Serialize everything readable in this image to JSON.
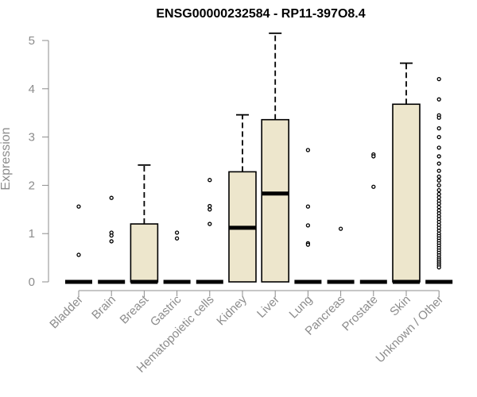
{
  "chart_data": {
    "type": "boxplot",
    "title": "ENSG00000232584 - RP11-397O8.4",
    "xlabel": "",
    "ylabel": "Expression",
    "ylim": [
      0,
      5.2
    ],
    "yticks": [
      0,
      1,
      2,
      3,
      4,
      5
    ],
    "colors": {
      "box_fill": "#ede6cc",
      "stroke": "#000000",
      "axis": "#8c8c8c"
    },
    "categories": [
      "Bladder",
      "Brain",
      "Breast",
      "Gastric",
      "Hematopoietic cells",
      "Kidney",
      "Liver",
      "Lung",
      "Pancreas",
      "Prostate",
      "Skin",
      "Unknown / Other"
    ],
    "boxes": [
      {
        "q1": 0,
        "median": 0,
        "q3": 0,
        "whisker_low": 0,
        "whisker_high": 0,
        "outliers": [
          1.56,
          0.56
        ]
      },
      {
        "q1": 0,
        "median": 0,
        "q3": 0,
        "whisker_low": 0,
        "whisker_high": 0,
        "outliers": [
          1.74,
          1.02,
          0.96,
          0.84
        ]
      },
      {
        "q1": 0,
        "median": 0,
        "q3": 1.2,
        "whisker_low": 0,
        "whisker_high": 2.42,
        "outliers": []
      },
      {
        "q1": 0,
        "median": 0,
        "q3": 0,
        "whisker_low": 0,
        "whisker_high": 0,
        "outliers": [
          1.02,
          0.9
        ]
      },
      {
        "q1": 0,
        "median": 0,
        "q3": 0,
        "whisker_low": 0,
        "whisker_high": 0,
        "outliers": [
          2.11,
          1.57,
          1.5,
          1.2
        ]
      },
      {
        "q1": 0,
        "median": 1.12,
        "q3": 2.28,
        "whisker_low": 0,
        "whisker_high": 3.46,
        "outliers": []
      },
      {
        "q1": 0,
        "median": 1.83,
        "q3": 3.36,
        "whisker_low": 0,
        "whisker_high": 5.15,
        "outliers": []
      },
      {
        "q1": 0,
        "median": 0,
        "q3": 0,
        "whisker_low": 0,
        "whisker_high": 0,
        "outliers": [
          2.73,
          1.56,
          1.17,
          0.8,
          0.77
        ]
      },
      {
        "q1": 0,
        "median": 0,
        "q3": 0,
        "whisker_low": 0,
        "whisker_high": 0,
        "outliers": [
          1.1
        ]
      },
      {
        "q1": 0,
        "median": 0,
        "q3": 0,
        "whisker_low": 0,
        "whisker_high": 0,
        "outliers": [
          2.64,
          2.6,
          1.97
        ]
      },
      {
        "q1": 0,
        "median": 0,
        "q3": 3.68,
        "whisker_low": 0,
        "whisker_high": 4.53,
        "outliers": []
      },
      {
        "q1": 0,
        "median": 0,
        "q3": 0,
        "whisker_low": 0,
        "whisker_high": 0,
        "outliers": [
          4.2,
          3.78,
          3.45,
          3.4,
          3.18,
          3.0,
          2.78,
          2.6,
          2.45,
          2.3,
          2.18,
          2.1,
          2.0,
          1.9,
          1.82,
          1.75,
          1.68,
          1.62,
          1.55,
          1.48,
          1.42,
          1.36,
          1.3,
          1.24,
          1.18,
          1.12,
          1.06,
          1.0,
          0.95,
          0.9,
          0.85,
          0.8,
          0.75,
          0.7,
          0.65,
          0.6,
          0.55,
          0.5,
          0.46,
          0.42,
          0.38,
          0.34,
          0.3
        ]
      }
    ]
  }
}
